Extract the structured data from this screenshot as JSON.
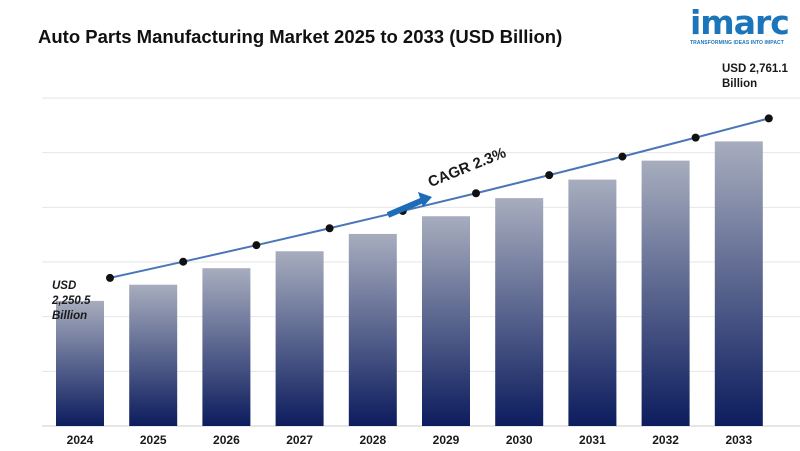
{
  "title": "Auto Parts Manufacturing Market 2025 to 2033 (USD Billion)",
  "logo": {
    "word": "imarc",
    "tagline": "TRANSFORMING IDEAS INTO IMPACT"
  },
  "annotations": {
    "first_value": [
      "USD",
      "2,250.5",
      "Billion"
    ],
    "last_value": [
      "USD 2,761.1",
      "Billion"
    ],
    "cagr": "CAGR  2.3%"
  },
  "colors": {
    "bar_top": "#a7adbe",
    "bar_bottom": "#0c1c5e",
    "line": "#4a76b8",
    "marker": "#111111",
    "arrow": "#1e6bb8",
    "grid": "#e6e6e6"
  },
  "chart_data": {
    "type": "bar",
    "categories": [
      "2024",
      "2025",
      "2026",
      "2027",
      "2028",
      "2029",
      "2030",
      "2031",
      "2032",
      "2033"
    ],
    "values": [
      2250.5,
      2302.3,
      2355.2,
      2409.4,
      2464.8,
      2521.5,
      2579.5,
      2638.8,
      2699.5,
      2761.1
    ],
    "ylim": [
      1850,
      2900
    ],
    "grid": true,
    "overlay_line": true
  }
}
